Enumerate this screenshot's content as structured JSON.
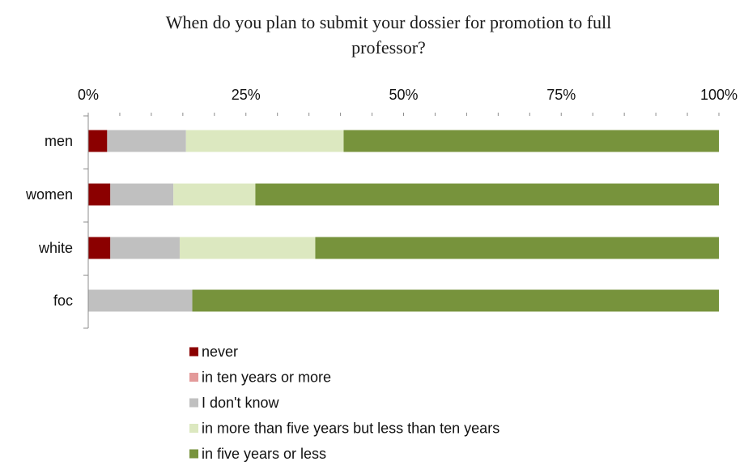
{
  "chart_data": {
    "type": "bar",
    "orientation": "horizontal",
    "stacked": true,
    "title_lines": [
      "When do you plan to submit your dossier for promotion to full",
      "professor?"
    ],
    "categories": [
      "men",
      "women",
      "white",
      "foc"
    ],
    "series": [
      {
        "name": "never",
        "color": "#8b0000",
        "values": [
          3,
          3.5,
          3.5,
          0
        ]
      },
      {
        "name": "in ten years or more",
        "color": "#e39a9a",
        "values": [
          0,
          0,
          0,
          0
        ]
      },
      {
        "name": "I don't know",
        "color": "#c0c0c0",
        "values": [
          12.5,
          10,
          11,
          16.5
        ]
      },
      {
        "name": "in more than five years but less than ten years",
        "color": "#dce8c0",
        "values": [
          25,
          13,
          21.5,
          0
        ]
      },
      {
        "name": "in five years or less",
        "color": "#77933c",
        "values": [
          59.5,
          73.5,
          64,
          83.5
        ]
      }
    ],
    "xlim": [
      0,
      100
    ],
    "xticks": [
      "0%",
      "25%",
      "50%",
      "75%",
      "100%"
    ],
    "xtick_values": [
      0,
      25,
      50,
      75,
      100
    ],
    "grid": false,
    "legend_position": "bottom"
  }
}
